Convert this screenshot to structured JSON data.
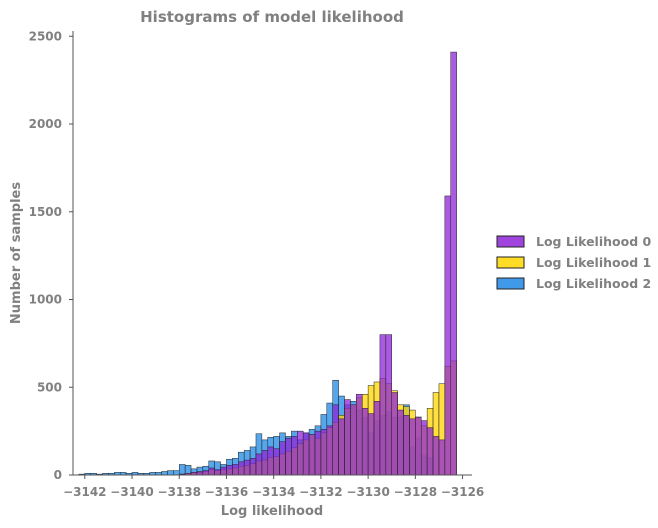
{
  "chart_data": {
    "type": "bar",
    "subtype": "overlaid-histogram",
    "title": "Histograms of model likelihood",
    "xlabel": "Log likelihood",
    "ylabel": "Number of samples",
    "xlim": [
      -3142.5,
      -3125.6
    ],
    "ylim": [
      0,
      2530
    ],
    "xticks": [
      -3142,
      -3140,
      -3138,
      -3136,
      -3134,
      -3132,
      -3130,
      -3128,
      -3126
    ],
    "yticks": [
      0,
      500,
      1000,
      1500,
      2000,
      2500
    ],
    "grid": false,
    "legend": "right",
    "bin_width": 0.25,
    "series": [
      {
        "name": "Log Likelihood 2",
        "color": "#1E88E5",
        "bin_left_edges": [
          -3142.25,
          -3142.0,
          -3141.75,
          -3141.5,
          -3141.25,
          -3141.0,
          -3140.75,
          -3140.5,
          -3140.25,
          -3140.0,
          -3139.75,
          -3139.5,
          -3139.25,
          -3139.0,
          -3138.75,
          -3138.5,
          -3138.25,
          -3138.0,
          -3137.75,
          -3137.5,
          -3137.25,
          -3137.0,
          -3136.75,
          -3136.5,
          -3136.25,
          -3136.0,
          -3135.75,
          -3135.5,
          -3135.25,
          -3135.0,
          -3134.75,
          -3134.5,
          -3134.25,
          -3134.0,
          -3133.75,
          -3133.5,
          -3133.25,
          -3133.0,
          -3132.75,
          -3132.5,
          -3132.25,
          -3132.0,
          -3131.75,
          -3131.5,
          -3131.25,
          -3131.0,
          -3130.75,
          -3130.5,
          -3130.25,
          -3130.0,
          -3129.75,
          -3129.5,
          -3129.25,
          -3129.0,
          -3128.75,
          -3128.5,
          -3128.25,
          -3128.0,
          -3127.75,
          -3127.5
        ],
        "counts": [
          5,
          10,
          10,
          5,
          10,
          10,
          15,
          15,
          10,
          15,
          10,
          10,
          15,
          15,
          20,
          25,
          25,
          60,
          55,
          35,
          45,
          50,
          80,
          75,
          60,
          90,
          95,
          130,
          140,
          160,
          235,
          200,
          215,
          220,
          240,
          220,
          250,
          200,
          240,
          260,
          280,
          345,
          410,
          540,
          450,
          400,
          420,
          370,
          330,
          240,
          310,
          340,
          360,
          330,
          330,
          400,
          160,
          210,
          110,
          100
        ]
      },
      {
        "name": "Log Likelihood 1",
        "color": "#FFD600",
        "bin_left_edges": [
          -3138.0,
          -3137.75,
          -3137.5,
          -3137.25,
          -3137.0,
          -3136.75,
          -3136.5,
          -3136.25,
          -3136.0,
          -3135.75,
          -3135.5,
          -3135.25,
          -3135.0,
          -3134.75,
          -3134.5,
          -3134.25,
          -3134.0,
          -3133.75,
          -3133.5,
          -3133.25,
          -3133.0,
          -3132.75,
          -3132.5,
          -3132.25,
          -3132.0,
          -3131.75,
          -3131.5,
          -3131.25,
          -3131.0,
          -3130.75,
          -3130.5,
          -3130.25,
          -3130.0,
          -3129.75,
          -3129.5,
          -3129.25,
          -3129.0,
          -3128.75,
          -3128.5,
          -3128.25,
          -3128.0,
          -3127.75,
          -3127.5,
          -3127.25,
          -3127.0,
          -3126.75,
          -3126.5
        ],
        "counts": [
          5,
          10,
          15,
          15,
          20,
          30,
          25,
          30,
          35,
          40,
          50,
          55,
          65,
          80,
          85,
          100,
          105,
          120,
          135,
          155,
          180,
          200,
          230,
          210,
          240,
          270,
          300,
          340,
          380,
          400,
          440,
          460,
          510,
          530,
          550,
          520,
          480,
          400,
          390,
          370,
          330,
          280,
          380,
          470,
          520,
          620,
          650
        ]
      },
      {
        "name": "Log Likelihood 0",
        "color": "#8E24D8",
        "bin_left_edges": [
          -3138.0,
          -3137.75,
          -3137.5,
          -3137.25,
          -3137.0,
          -3136.75,
          -3136.5,
          -3136.25,
          -3136.0,
          -3135.75,
          -3135.5,
          -3135.25,
          -3135.0,
          -3134.75,
          -3134.5,
          -3134.25,
          -3134.0,
          -3133.75,
          -3133.5,
          -3133.25,
          -3133.0,
          -3132.75,
          -3132.5,
          -3132.25,
          -3132.0,
          -3131.75,
          -3131.5,
          -3131.25,
          -3131.0,
          -3130.75,
          -3130.5,
          -3130.25,
          -3130.0,
          -3129.75,
          -3129.5,
          -3129.25,
          -3129.0,
          -3128.75,
          -3128.5,
          -3128.25,
          -3128.0,
          -3127.75,
          -3127.5,
          -3127.25,
          -3127.0,
          -3126.75,
          -3126.5
        ],
        "counts": [
          5,
          10,
          15,
          20,
          25,
          40,
          30,
          45,
          55,
          60,
          75,
          85,
          95,
          120,
          140,
          160,
          150,
          190,
          210,
          220,
          250,
          240,
          230,
          250,
          260,
          280,
          400,
          320,
          430,
          400,
          460,
          380,
          350,
          420,
          800,
          800,
          470,
          370,
          340,
          320,
          330,
          310,
          270,
          220,
          200,
          1590,
          2410
        ]
      }
    ]
  }
}
